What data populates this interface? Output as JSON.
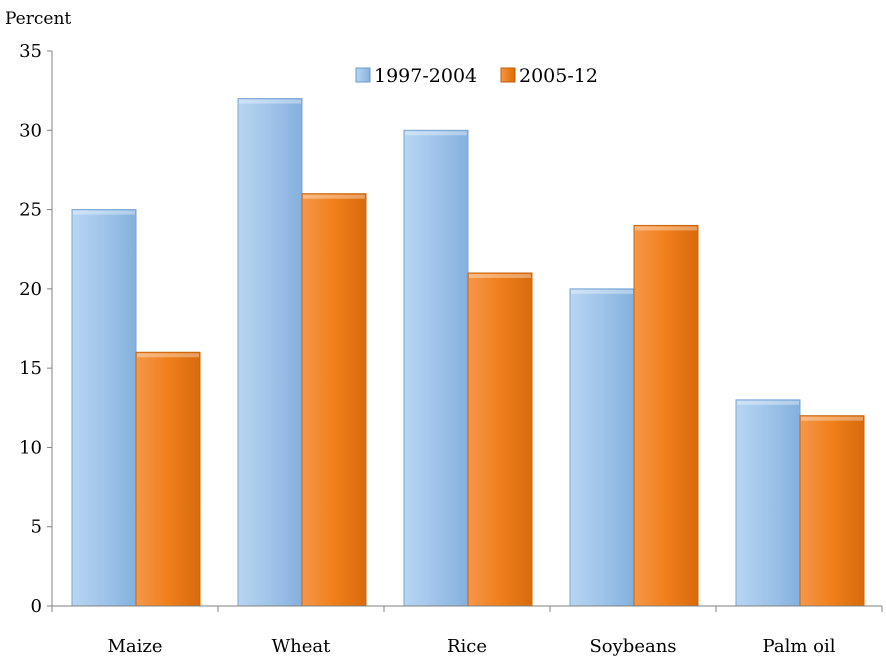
{
  "chart_data": {
    "type": "bar",
    "unit_label": "Percent",
    "categories": [
      "Maize",
      "Wheat",
      "Rice",
      "Soybeans",
      "Palm oil"
    ],
    "series": [
      {
        "name": "1997-2004",
        "values": [
          25,
          32,
          30,
          20,
          13
        ],
        "color": "#9DC3E6",
        "legend_label": "1997-2004"
      },
      {
        "name": "2005-12",
        "values": [
          16,
          26,
          21,
          24,
          12
        ],
        "color": "#F07F1B",
        "legend_label": "2005-12"
      }
    ],
    "ylim": [
      0,
      35
    ],
    "yticks": [
      "0",
      "5",
      "10",
      "15",
      "20",
      "25",
      "30",
      "35"
    ],
    "legend_position": "top-center",
    "grid": false
  }
}
